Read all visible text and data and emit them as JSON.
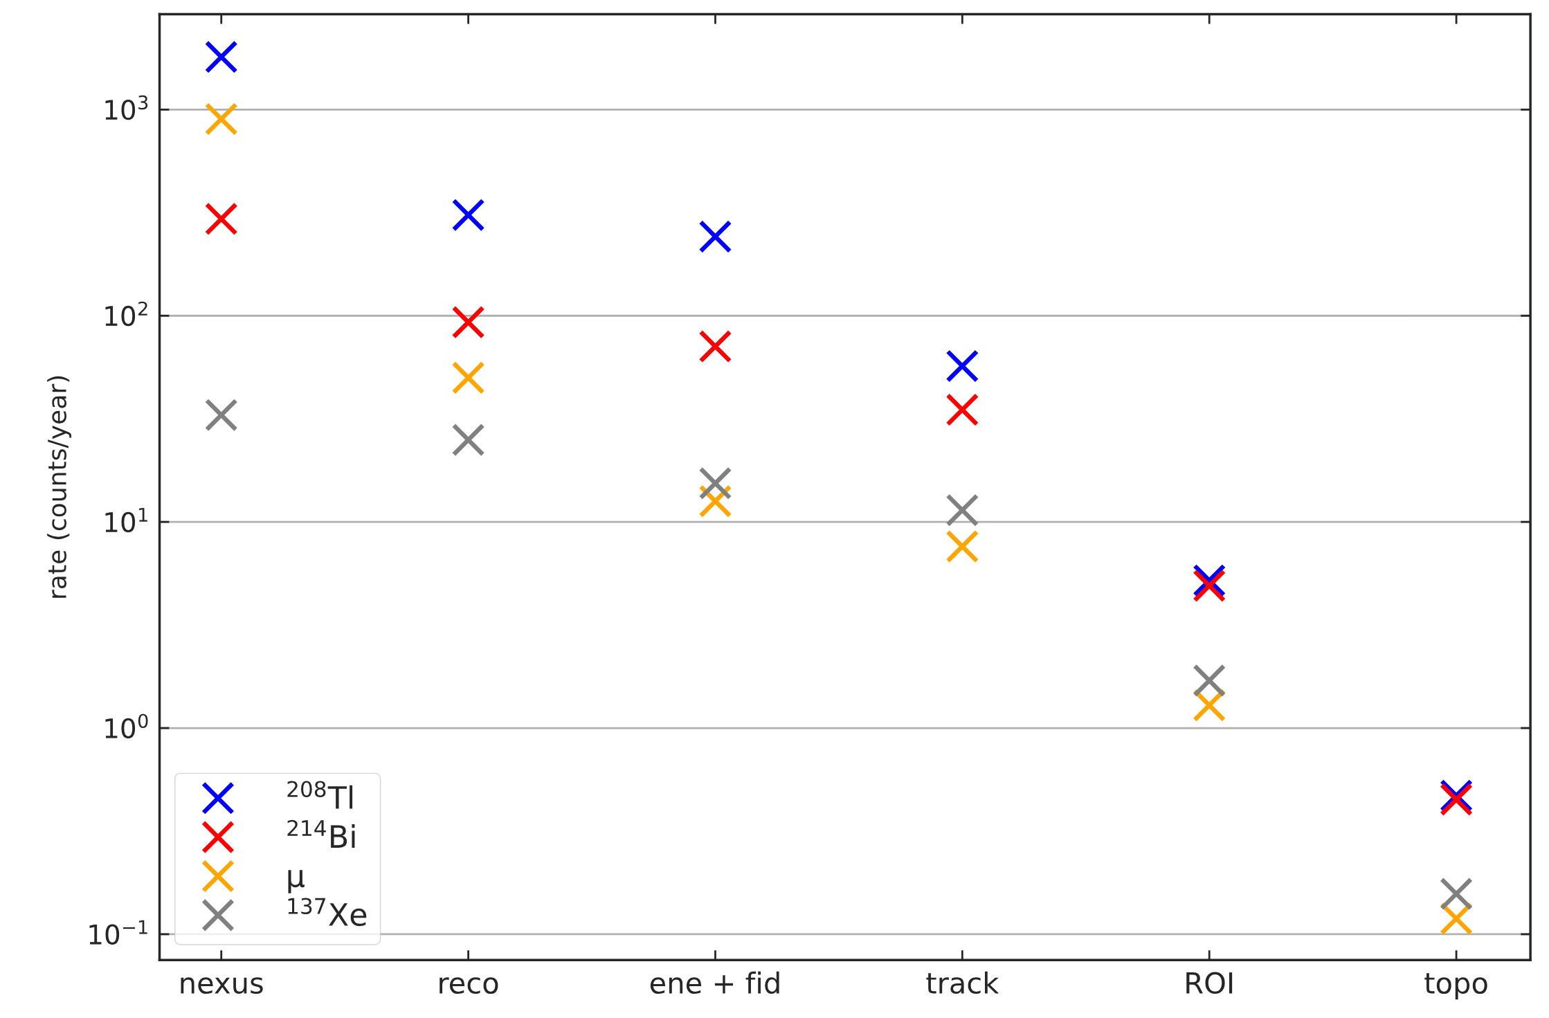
{
  "chart_data": {
    "type": "scatter",
    "ylabel": "rate (counts/year)",
    "categories": [
      "nexus",
      "reco",
      "ene + fid",
      "track",
      "ROI",
      "topo"
    ],
    "series": [
      {
        "name": "$^{208}$Tl",
        "color": "#0000ff",
        "values": [
          1800,
          308,
          242,
          57,
          5.2,
          0.47
        ]
      },
      {
        "name": "$^{214}$Bi",
        "color": "#ff0000",
        "values": [
          295,
          93,
          71,
          35,
          4.9,
          0.45
        ]
      },
      {
        "name": "μ",
        "color": "#ffa500",
        "values": [
          900,
          50,
          12.6,
          7.6,
          1.29,
          0.119
        ]
      },
      {
        "name": "$^{137}$Xe",
        "color": "#808080",
        "values": [
          33,
          25,
          15.4,
          11.4,
          1.7,
          0.157
        ]
      }
    ],
    "log": "y",
    "ylim": [
      0.075,
      2900
    ],
    "yticks": [
      {
        "value": 0.1,
        "label": "10$^{−1}$"
      },
      {
        "value": 1,
        "label": "10$^{0}$"
      },
      {
        "value": 10,
        "label": "10$^{1}$"
      },
      {
        "value": 100,
        "label": "10$^{2}$"
      },
      {
        "value": 1000,
        "label": "10$^{3}$"
      }
    ],
    "grid": "y",
    "legend": "bottom left",
    "marker": "cross"
  }
}
